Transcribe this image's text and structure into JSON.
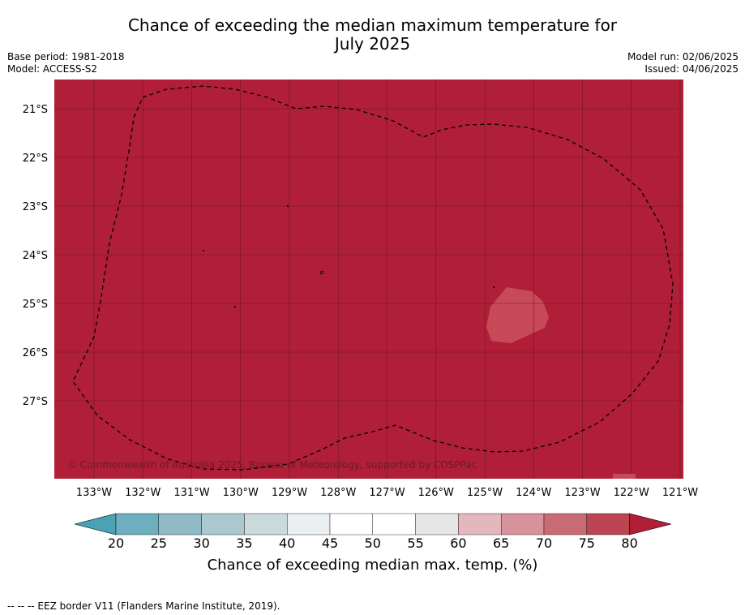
{
  "title": {
    "line1": "Chance of exceeding the median maximum temperature for",
    "line2": "July 2025"
  },
  "meta": {
    "base_period": "Base period: 1981-2018",
    "model": "Model: ACCESS-S2",
    "model_run": "Model run: 02/06/2025",
    "issued": "Issued: 04/06/2025"
  },
  "map": {
    "background_color": "#b01e38",
    "anomaly_color": "#c84a58",
    "grid_color": "#6e1624",
    "lon_ticks": [
      "133°W",
      "132°W",
      "131°W",
      "130°W",
      "129°W",
      "128°W",
      "127°W",
      "126°W",
      "125°W",
      "124°W",
      "123°W",
      "122°W",
      "121°W"
    ],
    "lat_ticks": [
      "21°S",
      "22°S",
      "23°S",
      "24°S",
      "25°S",
      "26°S",
      "27°S"
    ],
    "copyright": "© Commonwealth of Australia 2025, Bureau of Meteorology, supported by COSPPac"
  },
  "colorbar": {
    "colors": [
      "#6daebf",
      "#8fbac6",
      "#aac8cd",
      "#c9d9dc",
      "#eaf0f2",
      "#ffffff",
      "#ffffff",
      "#e6e6e6",
      "#e3b8bd",
      "#d7929b",
      "#c96b75",
      "#bc4552"
    ],
    "extend_low_color": "#4aa2b5",
    "extend_high_color": "#b01e38",
    "labels": [
      "20",
      "25",
      "30",
      "35",
      "40",
      "45",
      "50",
      "55",
      "60",
      "65",
      "70",
      "75",
      "80"
    ],
    "title": "Chance of exceeding median max. temp. (%)"
  },
  "footnote": "--  --  -- EEZ border V11 (Flanders Marine Institute, 2019)."
}
